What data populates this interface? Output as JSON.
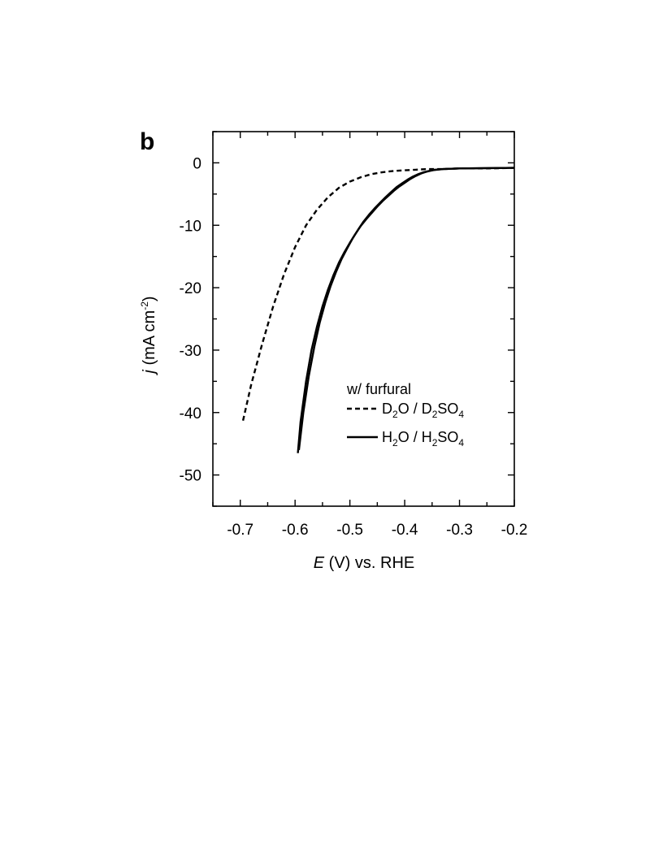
{
  "chart_data": {
    "type": "line",
    "panel_label": "b",
    "xlabel": {
      "italic": "E",
      "rest": " (V) vs. RHE"
    },
    "ylabel": {
      "italic": "j",
      "rest": " (mA cm",
      "sup": "-2",
      "close": ")"
    },
    "xlim": [
      -0.75,
      -0.2
    ],
    "ylim": [
      -55,
      5
    ],
    "x_ticks": [
      -0.7,
      -0.6,
      -0.5,
      -0.4,
      -0.3,
      -0.2
    ],
    "x_tick_labels": [
      "-0.7",
      "-0.6",
      "-0.5",
      "-0.4",
      "-0.3",
      "-0.2"
    ],
    "y_ticks": [
      0,
      -10,
      -20,
      -30,
      -40,
      -50
    ],
    "y_tick_labels": [
      "0",
      "-10",
      "-20",
      "-30",
      "-40",
      "-50"
    ],
    "grid": false,
    "legend": {
      "placement": "bottom-right",
      "title": "w/ furfural",
      "entries": [
        {
          "parts": [
            [
              "D",
              ""
            ],
            [
              "2",
              "sub"
            ],
            [
              "O / D",
              ""
            ],
            [
              "2",
              "sub"
            ],
            [
              "SO",
              ""
            ],
            [
              "4",
              "sub"
            ]
          ],
          "style": "dashed"
        },
        {
          "parts": [
            [
              "H",
              ""
            ],
            [
              "2",
              "sub"
            ],
            [
              "O / H",
              ""
            ],
            [
              "2",
              "sub"
            ],
            [
              "SO",
              ""
            ],
            [
              "4",
              "sub"
            ]
          ],
          "style": "solid"
        }
      ]
    },
    "series": [
      {
        "style": "dashed",
        "x": [
          -0.695,
          -0.68,
          -0.66,
          -0.64,
          -0.62,
          -0.6,
          -0.58,
          -0.56,
          -0.54,
          -0.52,
          -0.5,
          -0.48,
          -0.46,
          -0.44,
          -0.42,
          -0.4,
          -0.38,
          -0.36,
          -0.33,
          -0.3,
          -0.25,
          -0.2
        ],
        "y": [
          -41.3,
          -35.5,
          -29.0,
          -23.0,
          -17.8,
          -13.5,
          -10.0,
          -7.5,
          -5.5,
          -4.0,
          -3.0,
          -2.3,
          -1.8,
          -1.5,
          -1.3,
          -1.2,
          -1.1,
          -1.0,
          -1.0,
          -0.9,
          -0.9,
          -0.8
        ]
      },
      {
        "style": "solid",
        "x": [
          -0.595,
          -0.59,
          -0.58,
          -0.57,
          -0.56,
          -0.55,
          -0.54,
          -0.53,
          -0.52,
          -0.51,
          -0.5,
          -0.49,
          -0.48,
          -0.47,
          -0.46,
          -0.45,
          -0.44,
          -0.43,
          -0.42,
          -0.41,
          -0.4,
          -0.39,
          -0.38,
          -0.37,
          -0.36,
          -0.35,
          -0.33,
          -0.3,
          -0.25,
          -0.2
        ],
        "y": [
          -46.5,
          -41.5,
          -35.0,
          -30.0,
          -26.2,
          -23.0,
          -20.3,
          -18.0,
          -16.0,
          -14.3,
          -12.8,
          -11.4,
          -10.1,
          -9.0,
          -8.0,
          -7.0,
          -6.1,
          -5.3,
          -4.5,
          -3.8,
          -3.2,
          -2.6,
          -2.1,
          -1.7,
          -1.4,
          -1.2,
          -1.0,
          -0.9,
          -0.85,
          -0.8
        ]
      },
      {
        "style": "solid",
        "x": [
          -0.593,
          -0.585,
          -0.575,
          -0.565,
          -0.555,
          -0.545,
          -0.535,
          -0.525,
          -0.515,
          -0.505,
          -0.495,
          -0.485,
          -0.475,
          -0.465,
          -0.455,
          -0.445,
          -0.435,
          -0.425,
          -0.415,
          -0.405,
          -0.395,
          -0.385,
          -0.375,
          -0.365,
          -0.355,
          -0.345,
          -0.33,
          -0.3,
          -0.25,
          -0.2
        ],
        "y": [
          -46.0,
          -40.0,
          -34.2,
          -29.5,
          -25.6,
          -22.4,
          -19.7,
          -17.4,
          -15.4,
          -13.7,
          -12.1,
          -10.7,
          -9.4,
          -8.3,
          -7.3,
          -6.4,
          -5.5,
          -4.7,
          -3.9,
          -3.3,
          -2.7,
          -2.2,
          -1.8,
          -1.5,
          -1.3,
          -1.1,
          -1.0,
          -0.9,
          -0.85,
          -0.8
        ]
      }
    ]
  }
}
